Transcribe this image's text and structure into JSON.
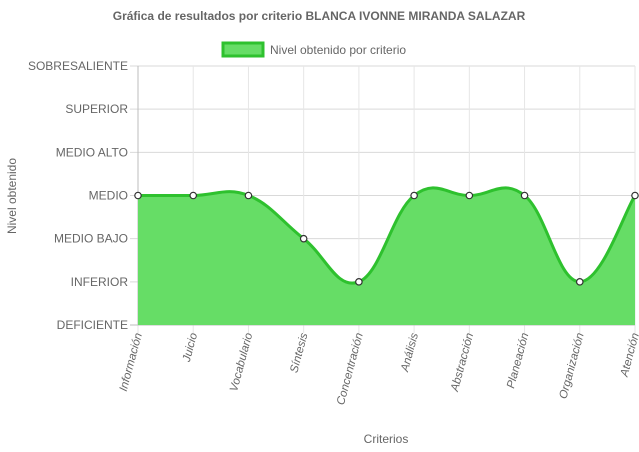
{
  "chart_data": {
    "type": "area",
    "title": "Gráfica de resultados por criterio BLANCA IVONNE MIRANDA SALAZAR",
    "xlabel": "Criterios",
    "ylabel": "Nivel obtenido",
    "y_levels": [
      "DEFICIENTE",
      "INFERIOR",
      "MEDIO BAJO",
      "MEDIO",
      "MEDIO ALTO",
      "SUPERIOR",
      "SOBRESALIENTE"
    ],
    "ylim": [
      0,
      6
    ],
    "categories": [
      "Información",
      "Juicio",
      "Vocabulario",
      "Síntesis",
      "Concentración",
      "Análisis",
      "Abstracción",
      "Planeación",
      "Organización",
      "Atención"
    ],
    "series": [
      {
        "name": "Nivel obtenido por criterio",
        "values": [
          3,
          3,
          3,
          2,
          1,
          3,
          3,
          3,
          1,
          3
        ],
        "fill_color": "#66dd66",
        "line_color": "#2ec12e"
      }
    ],
    "grid": true,
    "legend": "top-center"
  }
}
